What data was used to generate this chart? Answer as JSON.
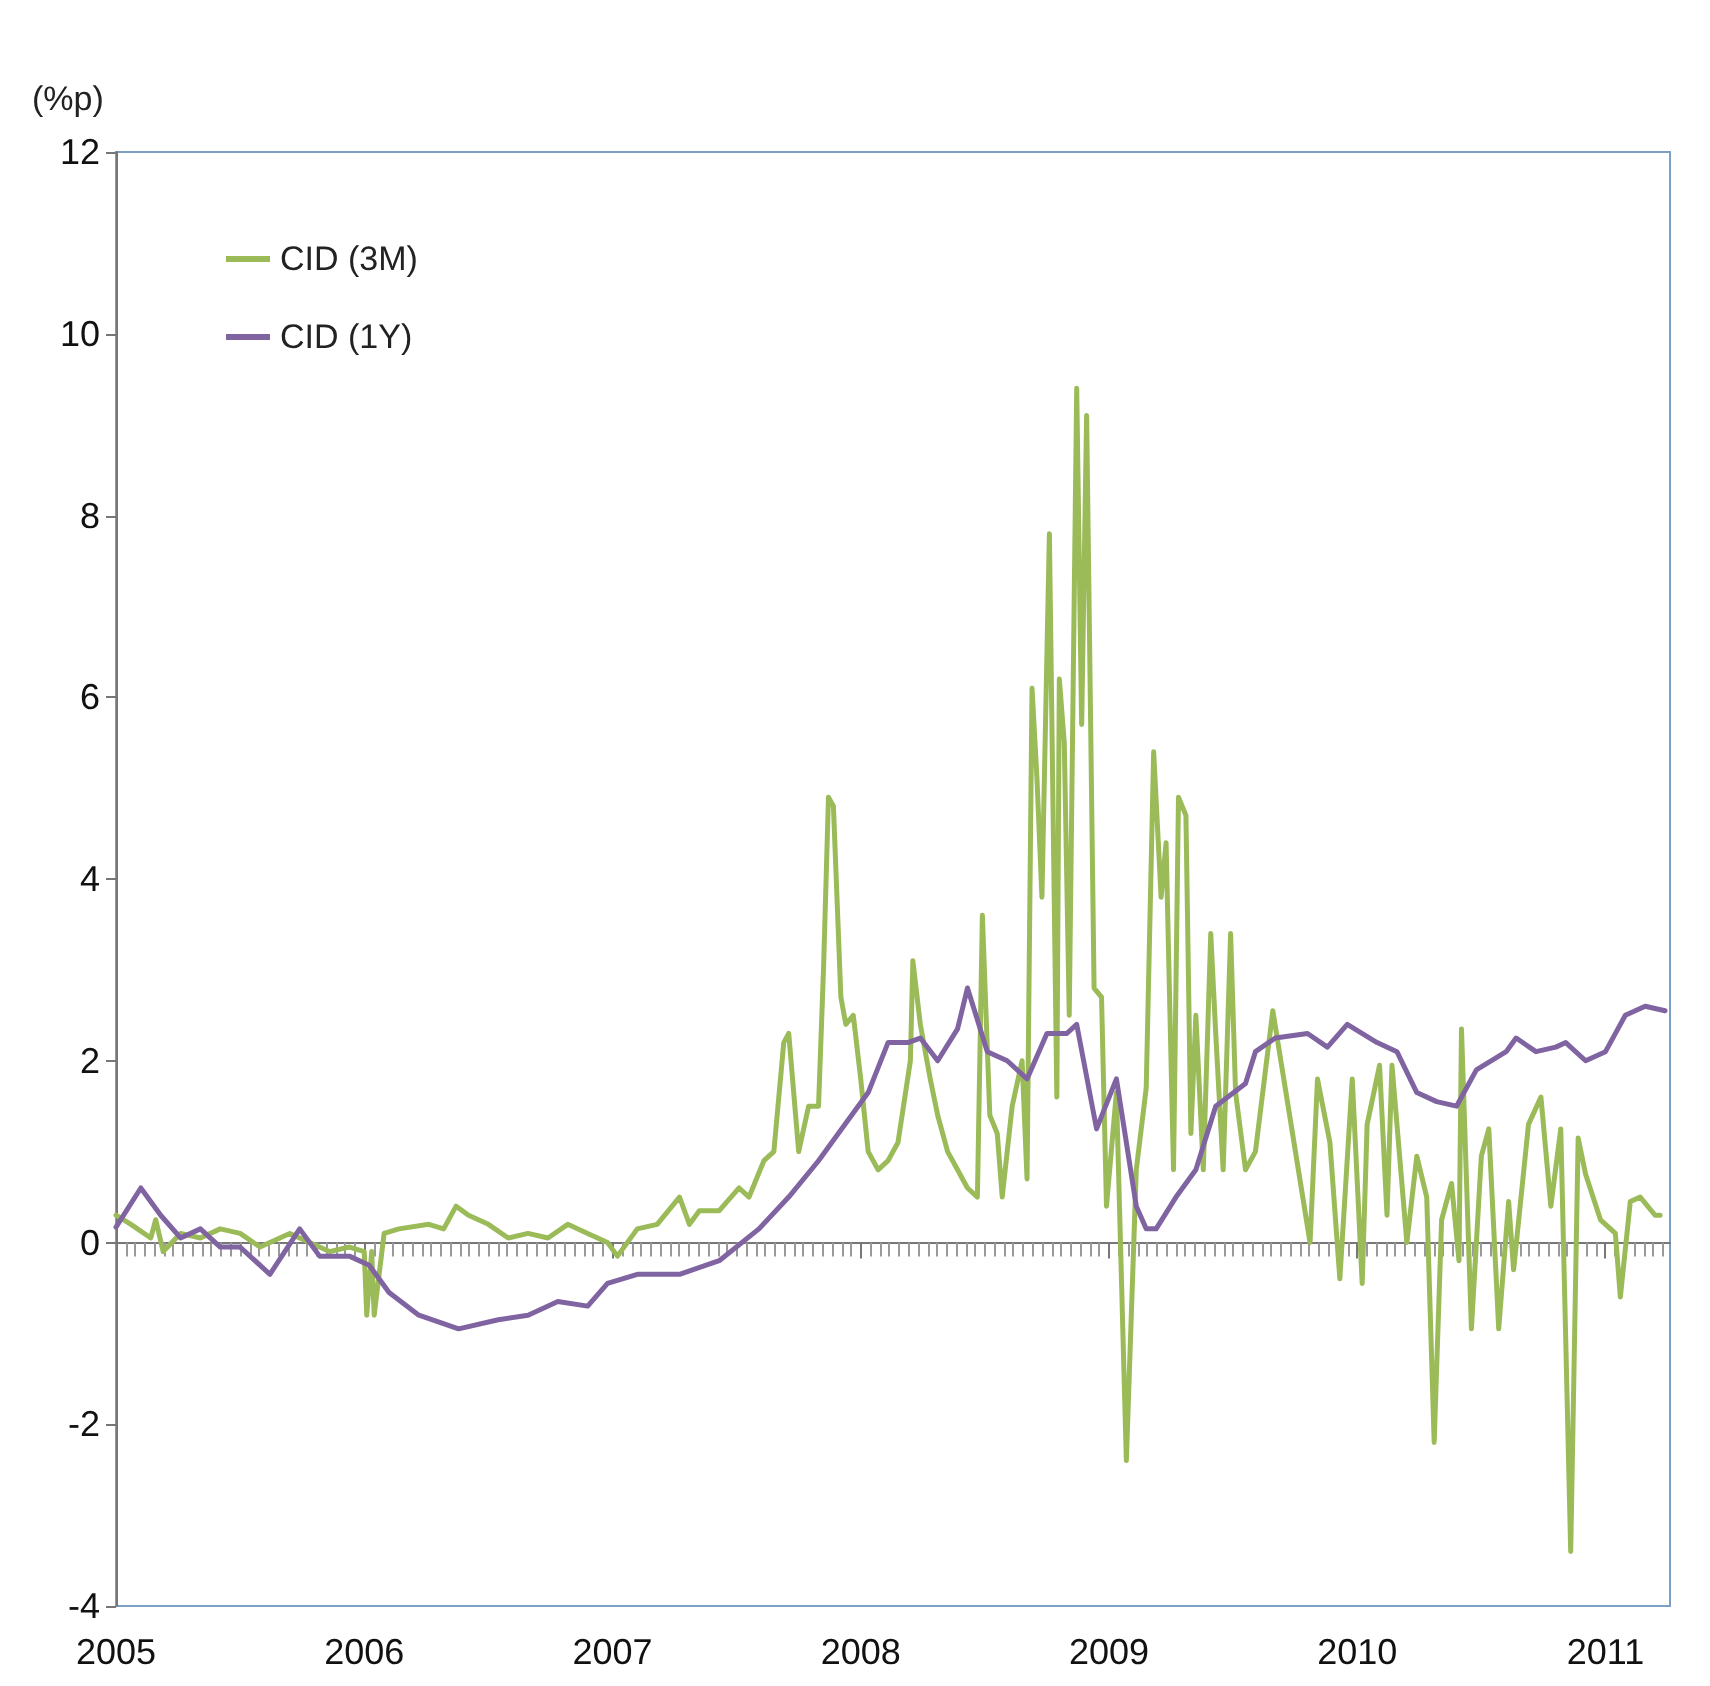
{
  "chart_data": {
    "type": "line",
    "ylabel": "(%p)",
    "xlim": [
      2005,
      2011.26
    ],
    "xticks": [
      2005,
      2006,
      2007,
      2008,
      2009,
      2010,
      2011
    ],
    "ylim": [
      -4,
      12
    ],
    "yticks": [
      -4,
      -2,
      0,
      2,
      4,
      6,
      8,
      10,
      12
    ],
    "legend": "top left",
    "marker": "none",
    "line_style": "solid",
    "series": [
      {
        "name": "CID (3M)",
        "color": "#9bbb59",
        "x": [
          2005.0,
          2005.06,
          2005.14,
          2005.16,
          2005.19,
          2005.26,
          2005.34,
          2005.42,
          2005.5,
          2005.58,
          2005.7,
          2005.78,
          2005.86,
          2005.94,
          2006.0,
          2006.01,
          2006.03,
          2006.04,
          2006.08,
          2006.14,
          2006.26,
          2006.32,
          2006.37,
          2006.42,
          2006.5,
          2006.58,
          2006.66,
          2006.74,
          2006.82,
          2006.9,
          2006.98,
          2007.02,
          2007.1,
          2007.18,
          2007.27,
          2007.31,
          2007.35,
          2007.43,
          2007.51,
          2007.55,
          2007.61,
          2007.65,
          2007.69,
          2007.71,
          2007.75,
          2007.79,
          2007.83,
          2007.85,
          2007.87,
          2007.89,
          2007.92,
          2007.94,
          2007.97,
          2008.0,
          2008.03,
          2008.07,
          2008.11,
          2008.15,
          2008.2,
          2008.21,
          2008.24,
          2008.28,
          2008.31,
          2008.35,
          2008.39,
          2008.43,
          2008.47,
          2008.49,
          2008.52,
          2008.55,
          2008.57,
          2008.61,
          2008.65,
          2008.67,
          2008.69,
          2008.71,
          2008.73,
          2008.76,
          2008.79,
          2008.8,
          2008.82,
          2008.84,
          2008.87,
          2008.89,
          2008.91,
          2008.94,
          2008.97,
          2008.99,
          2009.03,
          2009.07,
          2009.11,
          2009.15,
          2009.18,
          2009.21,
          2009.23,
          2009.26,
          2009.28,
          2009.31,
          2009.33,
          2009.35,
          2009.38,
          2009.41,
          2009.43,
          2009.46,
          2009.49,
          2009.51,
          2009.55,
          2009.59,
          2009.66,
          2009.81,
          2009.84,
          2009.89,
          2009.93,
          2009.98,
          2010.02,
          2010.04,
          2010.09,
          2010.12,
          2010.14,
          2010.2,
          2010.24,
          2010.28,
          2010.31,
          2010.34,
          2010.38,
          2010.41,
          2010.42,
          2010.46,
          2010.5,
          2010.53,
          2010.57,
          2010.61,
          2010.63,
          2010.69,
          2010.74,
          2010.78,
          2010.82,
          2010.86,
          2010.89,
          2010.92,
          2010.98,
          2011.04,
          2011.06,
          2011.1,
          2011.14,
          2011.2,
          2011.22
        ],
        "values": [
          0.3,
          0.2,
          0.05,
          0.25,
          -0.1,
          0.1,
          0.05,
          0.15,
          0.1,
          -0.05,
          0.1,
          0.0,
          -0.1,
          -0.05,
          -0.1,
          -0.8,
          -0.1,
          -0.8,
          0.1,
          0.15,
          0.2,
          0.15,
          0.4,
          0.3,
          0.2,
          0.05,
          0.1,
          0.05,
          0.2,
          0.1,
          0.0,
          -0.15,
          0.15,
          0.2,
          0.5,
          0.2,
          0.35,
          0.35,
          0.6,
          0.5,
          0.9,
          1.0,
          2.2,
          2.3,
          1.0,
          1.5,
          1.5,
          3.0,
          4.9,
          4.8,
          2.7,
          2.4,
          2.5,
          1.8,
          1.0,
          0.8,
          0.9,
          1.1,
          2.0,
          3.1,
          2.4,
          1.8,
          1.4,
          1.0,
          0.8,
          0.6,
          0.5,
          3.6,
          1.4,
          1.2,
          0.5,
          1.5,
          2.0,
          0.7,
          6.1,
          5.1,
          3.8,
          7.8,
          1.6,
          6.2,
          5.5,
          2.5,
          9.4,
          5.7,
          9.1,
          2.8,
          2.7,
          0.4,
          1.65,
          -2.4,
          0.8,
          1.7,
          5.4,
          3.8,
          4.4,
          0.8,
          4.9,
          4.7,
          1.2,
          2.5,
          0.8,
          3.4,
          2.3,
          0.8,
          3.4,
          1.65,
          0.8,
          1.0,
          2.55,
          0.0,
          1.8,
          1.1,
          -0.4,
          1.8,
          -0.45,
          1.3,
          1.95,
          0.3,
          1.95,
          0.0,
          0.95,
          0.5,
          -2.2,
          0.25,
          0.65,
          -0.2,
          2.35,
          -0.95,
          0.95,
          1.25,
          -0.95,
          0.45,
          -0.3,
          1.3,
          1.6,
          0.4,
          1.25,
          -3.4,
          1.15,
          0.75,
          0.25,
          0.1,
          -0.6,
          0.45,
          0.5,
          0.3,
          0.3
        ]
      },
      {
        "name": "CID (1Y)",
        "color": "#8064a2",
        "x": [
          2005.0,
          2005.1,
          2005.18,
          2005.26,
          2005.34,
          2005.42,
          2005.5,
          2005.62,
          2005.74,
          2005.82,
          2005.94,
          2006.02,
          2006.1,
          2006.22,
          2006.38,
          2006.54,
          2006.66,
          2006.78,
          2006.9,
          2006.98,
          2007.1,
          2007.27,
          2007.43,
          2007.59,
          2007.71,
          2007.83,
          2007.95,
          2008.03,
          2008.11,
          2008.19,
          2008.24,
          2008.31,
          2008.39,
          2008.43,
          2008.51,
          2008.59,
          2008.67,
          2008.75,
          2008.83,
          2008.87,
          2008.95,
          2009.03,
          2009.11,
          2009.15,
          2009.19,
          2009.27,
          2009.35,
          2009.43,
          2009.55,
          2009.59,
          2009.67,
          2009.8,
          2009.88,
          2009.96,
          2010.08,
          2010.16,
          2010.24,
          2010.32,
          2010.4,
          2010.48,
          2010.6,
          2010.64,
          2010.72,
          2010.8,
          2010.84,
          2010.92,
          2011.0,
          2011.08,
          2011.16,
          2011.24
        ],
        "values": [
          0.17,
          0.6,
          0.3,
          0.05,
          0.15,
          -0.05,
          -0.05,
          -0.35,
          0.15,
          -0.15,
          -0.15,
          -0.25,
          -0.55,
          -0.8,
          -0.95,
          -0.85,
          -0.8,
          -0.65,
          -0.7,
          -0.45,
          -0.35,
          -0.35,
          -0.2,
          0.15,
          0.5,
          0.9,
          1.35,
          1.65,
          2.2,
          2.2,
          2.25,
          2.0,
          2.35,
          2.8,
          2.1,
          2.0,
          1.8,
          2.3,
          2.3,
          2.4,
          1.25,
          1.8,
          0.4,
          0.15,
          0.15,
          0.5,
          0.8,
          1.5,
          1.75,
          2.1,
          2.25,
          2.3,
          2.15,
          2.4,
          2.2,
          2.1,
          1.65,
          1.55,
          1.5,
          1.9,
          2.1,
          2.25,
          2.1,
          2.15,
          2.2,
          2.0,
          2.1,
          2.5,
          2.6,
          2.55
        ]
      }
    ]
  }
}
